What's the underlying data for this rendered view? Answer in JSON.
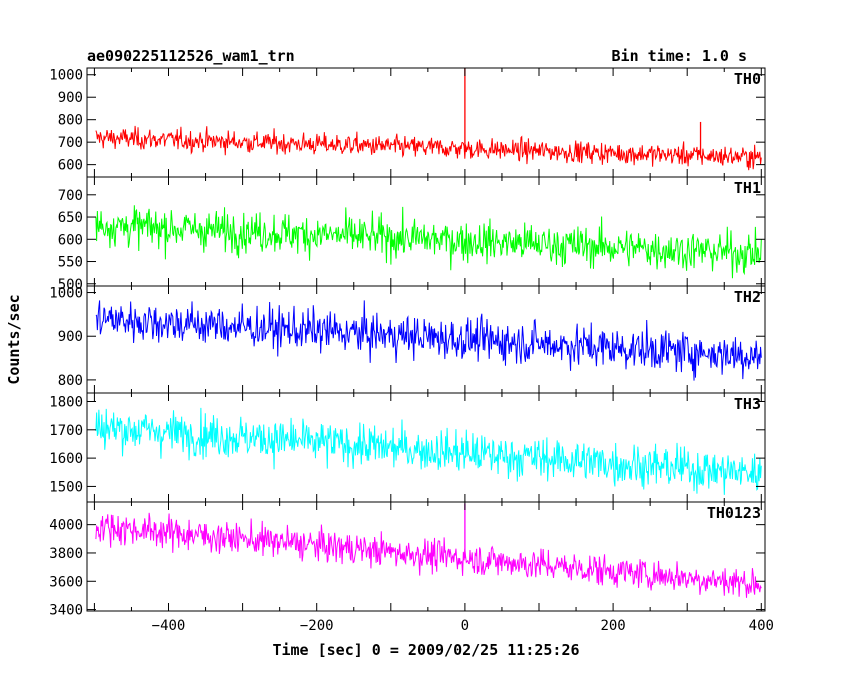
{
  "chart_data": {
    "type": "line",
    "title": "ae090225112526_wam1_trn",
    "bin_time": "Bin time: 1.0 s",
    "xlabel": "Time [sec] 0 = 2009/02/25 11:25:26",
    "ylabel": "Counts/sec",
    "xlim": [
      -510,
      405
    ],
    "x_ticks": [
      -400,
      -200,
      0,
      200,
      400
    ],
    "x_tick_labels": [
      "−400",
      "−200",
      "0",
      "200",
      "400"
    ],
    "panels": [
      {
        "name": "TH0",
        "color": "#ff0000",
        "ylim": [
          545,
          1030
        ],
        "y_ticks": [
          600,
          700,
          800,
          900,
          1000
        ],
        "y_tick_labels": [
          "600",
          "700",
          "800",
          "900",
          "1000"
        ],
        "trend_start": 720,
        "trend_end": 632,
        "noise_sd": 32,
        "spikes": [
          {
            "x": 0,
            "y": 1030
          },
          {
            "x": 318,
            "y": 790
          }
        ]
      },
      {
        "name": "TH1",
        "color": "#00ff00",
        "ylim": [
          495,
          740
        ],
        "y_ticks": [
          500,
          550,
          600,
          650,
          700
        ],
        "y_tick_labels": [
          "500",
          "550",
          "600",
          "650",
          "700"
        ],
        "trend_start": 632,
        "trend_end": 568,
        "noise_sd": 30,
        "spikes": []
      },
      {
        "name": "TH2",
        "color": "#0000ff",
        "ylim": [
          770,
          1015
        ],
        "y_ticks": [
          800,
          900,
          1000
        ],
        "y_tick_labels": [
          "800",
          "900",
          "1000"
        ],
        "trend_start": 940,
        "trend_end": 855,
        "noise_sd": 32,
        "spikes": []
      },
      {
        "name": "TH3",
        "color": "#00ffff",
        "ylim": [
          1445,
          1830
        ],
        "y_ticks": [
          1500,
          1600,
          1700,
          1800
        ],
        "y_tick_labels": [
          "1500",
          "1600",
          "1700",
          "1800"
        ],
        "trend_start": 1710,
        "trend_end": 1545,
        "noise_sd": 50,
        "spikes": []
      },
      {
        "name": "TH0123",
        "color": "#ff00ff",
        "ylim": [
          3390,
          4160
        ],
        "y_ticks": [
          3400,
          3600,
          3800,
          4000
        ],
        "y_tick_labels": [
          "3400",
          "3600",
          "3800",
          "4000"
        ],
        "trend_start": 3990,
        "trend_end": 3580,
        "noise_sd": 75,
        "spikes": [
          {
            "x": 0,
            "y": 4150
          }
        ]
      }
    ],
    "grid": false
  }
}
